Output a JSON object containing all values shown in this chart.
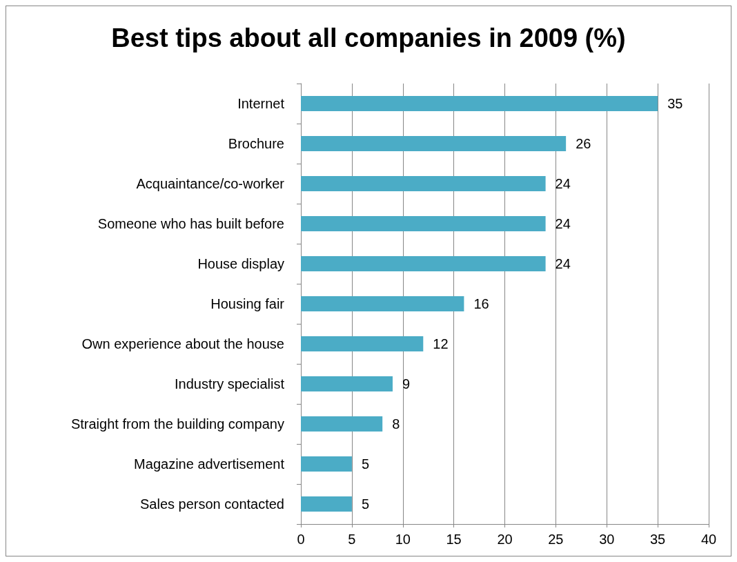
{
  "chart_data": {
    "type": "bar",
    "orientation": "horizontal",
    "title": "Best tips about all companies in 2009 (%)",
    "categories": [
      "Internet",
      "Brochure",
      "Acquaintance/co-worker",
      "Someone who has built before",
      "House display",
      "Housing fair",
      "Own experience about the house",
      "Industry specialist",
      "Straight from the building company",
      "Magazine advertisement",
      "Sales person contacted"
    ],
    "values": [
      35,
      26,
      24,
      24,
      24,
      16,
      12,
      9,
      8,
      5,
      5
    ],
    "color": "#4bacc6",
    "xlim": [
      0,
      40
    ],
    "xticks": [
      0,
      5,
      10,
      15,
      20,
      25,
      30,
      35,
      40
    ],
    "grid": "x",
    "data_labels": true
  }
}
